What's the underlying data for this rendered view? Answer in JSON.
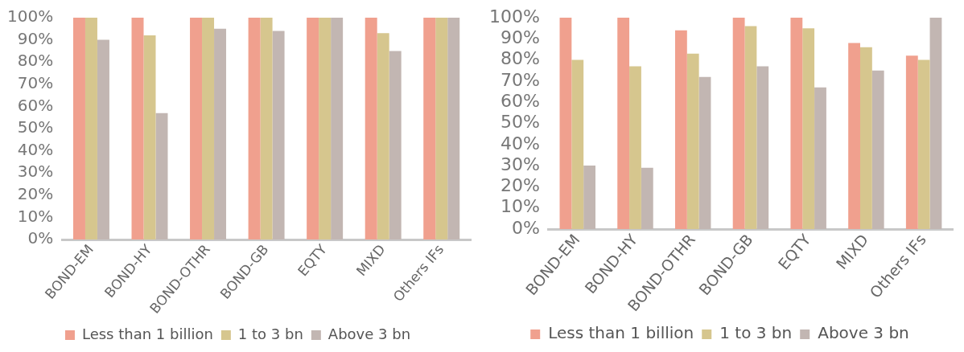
{
  "chart_data": [
    {
      "type": "bar",
      "categories": [
        "BOND-EM",
        "BOND-HY",
        "BOND-OTHR",
        "BOND-GB",
        "EQTY",
        "MIXD",
        "Others IFs"
      ],
      "series": [
        {
          "name": "Less than 1 billion",
          "color": "#f0a08e",
          "values": [
            100,
            100,
            100,
            100,
            100,
            100,
            100
          ]
        },
        {
          "name": "1 to 3 bn",
          "color": "#d6c68e",
          "values": [
            100,
            92,
            100,
            100,
            100,
            93,
            100
          ]
        },
        {
          "name": "Above 3 bn",
          "color": "#c2b6b2",
          "values": [
            90,
            57,
            95,
            94,
            100,
            85,
            100
          ]
        }
      ],
      "ylim": [
        0,
        100
      ],
      "yticks": [
        {
          "value": 0,
          "label": "0%"
        },
        {
          "value": 10,
          "label": "10%"
        },
        {
          "value": 20,
          "label": "20%"
        },
        {
          "value": 30,
          "label": "30%"
        },
        {
          "value": 40,
          "label": "40%"
        },
        {
          "value": 50,
          "label": "50%"
        },
        {
          "value": 60,
          "label": "60%"
        },
        {
          "value": 70,
          "label": "70%"
        },
        {
          "value": 80,
          "label": "80%"
        },
        {
          "value": 90,
          "label": "90%"
        },
        {
          "value": 100,
          "label": "100%"
        }
      ],
      "grid": false,
      "legend": "bottom"
    },
    {
      "type": "bar",
      "categories": [
        "BOND-EM",
        "BOND-HY",
        "BOND-OTHR",
        "BOND-GB",
        "EQTY",
        "MIXD",
        "Others IFs"
      ],
      "series": [
        {
          "name": "Less than 1 billion",
          "color": "#f0a08e",
          "values": [
            100,
            100,
            94,
            100,
            100,
            88,
            82
          ]
        },
        {
          "name": "1 to 3 bn",
          "color": "#d6c68e",
          "values": [
            80,
            77,
            83,
            96,
            95,
            86,
            80
          ]
        },
        {
          "name": "Above 3 bn",
          "color": "#c2b6b2",
          "values": [
            30,
            29,
            72,
            77,
            67,
            75,
            100
          ]
        }
      ],
      "ylim": [
        0,
        100
      ],
      "yticks": [
        {
          "value": 0,
          "label": "0%"
        },
        {
          "value": 10,
          "label": "10%"
        },
        {
          "value": 20,
          "label": "20%"
        },
        {
          "value": 30,
          "label": "30%"
        },
        {
          "value": 40,
          "label": "40%"
        },
        {
          "value": 50,
          "label": "50%"
        },
        {
          "value": 60,
          "label": "60%"
        },
        {
          "value": 70,
          "label": "70%"
        },
        {
          "value": 80,
          "label": "80%"
        },
        {
          "value": 90,
          "label": "90%"
        },
        {
          "value": 100,
          "label": "100%"
        }
      ],
      "grid": false,
      "legend": "bottom"
    }
  ]
}
